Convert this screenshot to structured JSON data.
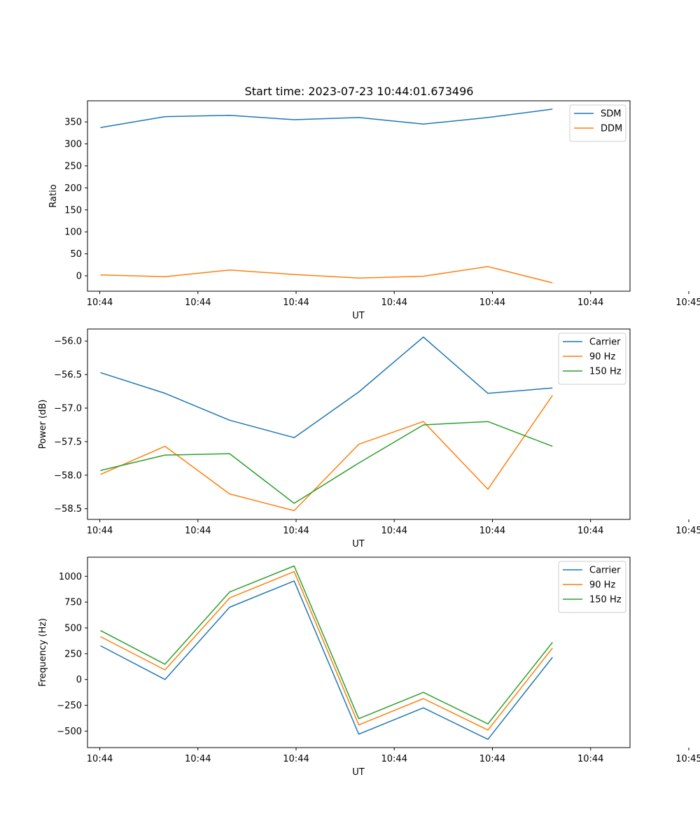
{
  "figure": {
    "title": "Start time: 2023-07-23 10:44:01.673496"
  },
  "colors": {
    "blue": "#1f77b4",
    "orange": "#ff7f0e",
    "green": "#2ca02c"
  },
  "chart_data": [
    {
      "type": "line",
      "title": "Start time: 2023-07-23 10:44:01.673496",
      "xlabel": "UT",
      "ylabel": "Ratio",
      "x": [
        1,
        2,
        3,
        4,
        5,
        6,
        7,
        8
      ],
      "xlim": [
        0.8,
        9.2
      ],
      "xticks": [
        1,
        2.5,
        4,
        5.5,
        7,
        8.5,
        10
      ],
      "xtick_labels": [
        "10:44",
        "10:44",
        "10:44",
        "10:44",
        "10:44",
        "10:44",
        "10:45"
      ],
      "xtick_positions": [
        0,
        1.52,
        3.04,
        4.56,
        6.08,
        7.6,
        9.12
      ],
      "ylim": [
        -35,
        398
      ],
      "yticks": [
        0,
        50,
        100,
        150,
        200,
        250,
        300,
        350
      ],
      "ytick_labels": [
        "0",
        "50",
        "100",
        "150",
        "200",
        "250",
        "300",
        "350"
      ],
      "legend_position": "top-right",
      "series": [
        {
          "name": "SDM",
          "color": "#1f77b4",
          "values": [
            337,
            362,
            365,
            355,
            360,
            345,
            360,
            379
          ]
        },
        {
          "name": "DDM",
          "color": "#ff7f0e",
          "values": [
            2,
            -2,
            13,
            3,
            -5,
            -1,
            21,
            -16
          ]
        }
      ]
    },
    {
      "type": "line",
      "xlabel": "UT",
      "ylabel": "Power (dB)",
      "ylim": [
        -58.66,
        -55.82
      ],
      "yticks": [
        -58.5,
        -58.0,
        -57.5,
        -57.0,
        -56.5,
        -56.0
      ],
      "ytick_labels": [
        "−58.5",
        "−58.0",
        "−57.5",
        "−57.0",
        "−56.5",
        "−56.0"
      ],
      "xtick_labels": [
        "10:44",
        "10:44",
        "10:44",
        "10:44",
        "10:44",
        "10:44",
        "10:45"
      ],
      "legend_position": "top-right",
      "series": [
        {
          "name": "Carrier",
          "color": "#1f77b4",
          "values": [
            -56.47,
            -56.78,
            -57.18,
            -57.44,
            -56.76,
            -55.94,
            -56.78,
            -56.7
          ]
        },
        {
          "name": "90 Hz",
          "color": "#ff7f0e",
          "values": [
            -57.99,
            -57.57,
            -58.28,
            -58.53,
            -57.54,
            -57.2,
            -58.21,
            -56.81
          ]
        },
        {
          "name": "150 Hz",
          "color": "#2ca02c",
          "values": [
            -57.93,
            -57.7,
            -57.68,
            -58.42,
            -57.82,
            -57.25,
            -57.2,
            -57.57
          ]
        }
      ]
    },
    {
      "type": "line",
      "xlabel": "UT",
      "ylabel": "Frequency (Hz)",
      "ylim": [
        -660,
        1185
      ],
      "yticks": [
        -500,
        -250,
        0,
        250,
        500,
        750,
        1000
      ],
      "ytick_labels": [
        "−500",
        "−250",
        "0",
        "250",
        "500",
        "750",
        "1000"
      ],
      "xtick_labels": [
        "10:44",
        "10:44",
        "10:44",
        "10:44",
        "10:44",
        "10:44",
        "10:45"
      ],
      "legend_position": "top-right",
      "series": [
        {
          "name": "Carrier",
          "color": "#1f77b4",
          "values": [
            327,
            0,
            700,
            955,
            -530,
            -275,
            -580,
            215
          ]
        },
        {
          "name": "90 Hz",
          "color": "#ff7f0e",
          "values": [
            415,
            93,
            790,
            1045,
            -440,
            -185,
            -490,
            305
          ]
        },
        {
          "name": "150 Hz",
          "color": "#2ca02c",
          "values": [
            475,
            148,
            848,
            1100,
            -380,
            -125,
            -430,
            360
          ]
        }
      ]
    }
  ]
}
